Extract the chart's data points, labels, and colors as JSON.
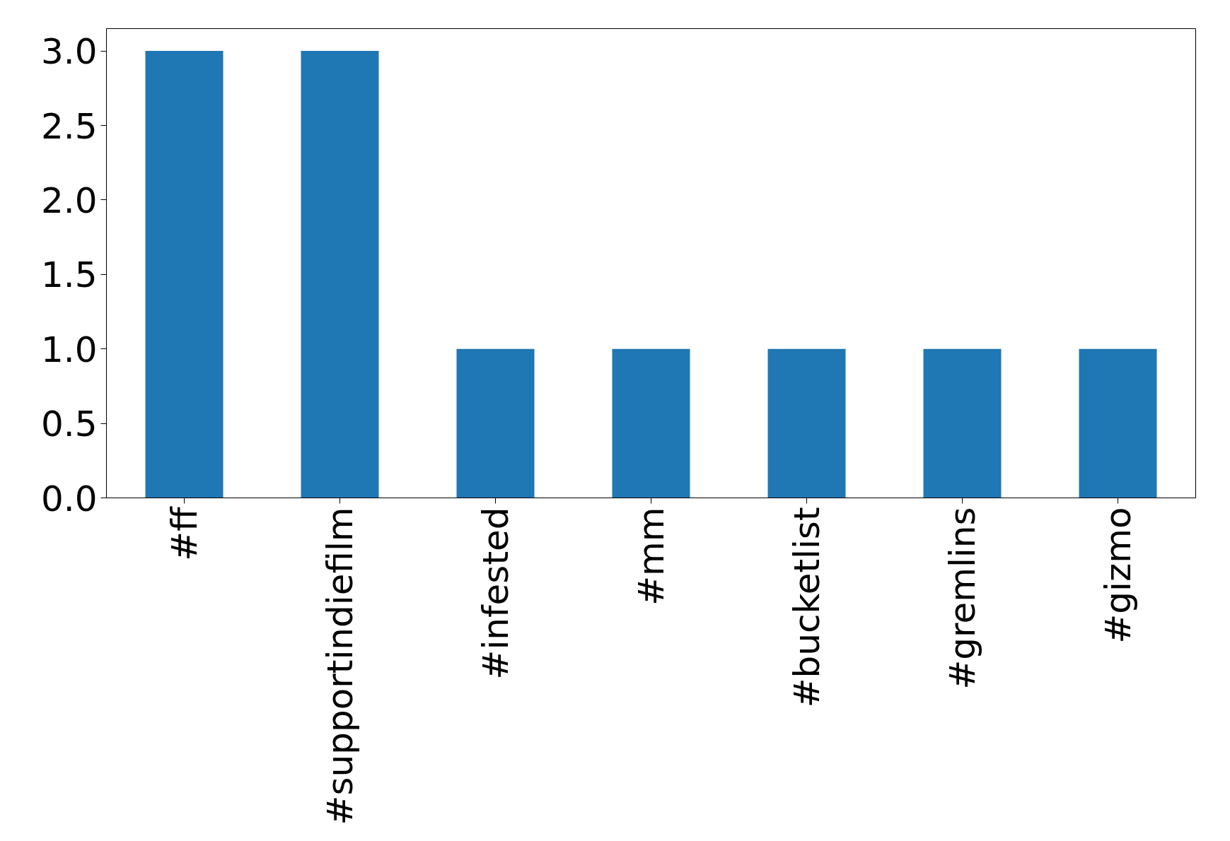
{
  "chart_data": {
    "type": "bar",
    "categories": [
      "#ff",
      "#supportindiefilm",
      "#infested",
      "#mm",
      "#bucketlist",
      "#gremlins",
      "#gizmo"
    ],
    "values": [
      3,
      3,
      1,
      1,
      1,
      1,
      1
    ],
    "color": "#1f77b4",
    "ylim": [
      0,
      3.15
    ],
    "yticks": [
      {
        "value": 0,
        "label": "0.0"
      },
      {
        "value": 0.5,
        "label": "0.5"
      },
      {
        "value": 1,
        "label": "1.0"
      },
      {
        "value": 1.5,
        "label": "1.5"
      },
      {
        "value": 2,
        "label": "2.0"
      },
      {
        "value": 2.5,
        "label": "2.5"
      },
      {
        "value": 3,
        "label": "3.0"
      }
    ],
    "grid": false
  }
}
